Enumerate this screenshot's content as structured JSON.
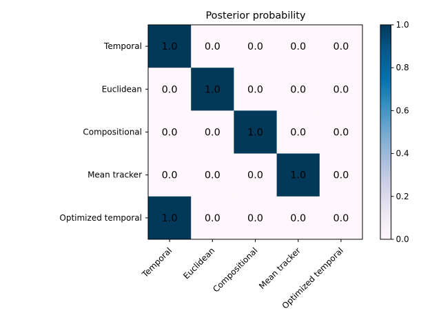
{
  "chart_data": {
    "type": "heatmap",
    "title": "Posterior probability",
    "rows": [
      "Temporal",
      "Euclidean",
      "Compositional",
      "Mean tracker",
      "Optimized temporal"
    ],
    "columns": [
      "Temporal",
      "Euclidean",
      "Compositional",
      "Mean tracker",
      "Optimized temporal"
    ],
    "values": [
      [
        1.0,
        0.0,
        0.0,
        0.0,
        0.0
      ],
      [
        0.0,
        1.0,
        0.0,
        0.0,
        0.0
      ],
      [
        0.0,
        0.0,
        1.0,
        0.0,
        0.0
      ],
      [
        0.0,
        0.0,
        0.0,
        1.0,
        0.0
      ],
      [
        1.0,
        0.0,
        0.0,
        0.0,
        0.0
      ]
    ],
    "cell_labels": [
      [
        "1.0",
        "0.0",
        "0.0",
        "0.0",
        "0.0"
      ],
      [
        "0.0",
        "1.0",
        "0.0",
        "0.0",
        "0.0"
      ],
      [
        "0.0",
        "0.0",
        "1.0",
        "0.0",
        "0.0"
      ],
      [
        "0.0",
        "0.0",
        "0.0",
        "1.0",
        "0.0"
      ],
      [
        "1.0",
        "0.0",
        "0.0",
        "0.0",
        "0.0"
      ]
    ],
    "colormap": "PuBu",
    "color_low": "#fff7fb",
    "color_high": "#023858",
    "colorbar": {
      "range": [
        0.0,
        1.0
      ],
      "ticks": [
        0.0,
        0.2,
        0.4,
        0.6,
        0.8,
        1.0
      ],
      "tick_labels": [
        "0.0",
        "0.2",
        "0.4",
        "0.6",
        "0.8",
        "1.0"
      ]
    },
    "grid": false
  }
}
